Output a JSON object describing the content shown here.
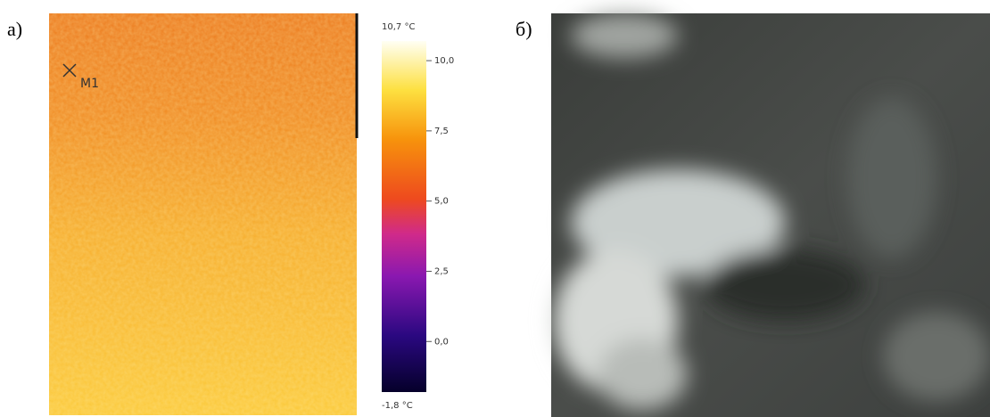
{
  "panel_a": {
    "label": "а)",
    "marker": "M1",
    "colorbar": {
      "max_label": "10,7 °C",
      "min_label": "-1,8 °C",
      "range": [
        -1.8,
        10.7
      ],
      "ticks": [
        {
          "value": 10,
          "label": "10,0"
        },
        {
          "value": 7.5,
          "label": "7,5"
        },
        {
          "value": 5,
          "label": "5,0"
        },
        {
          "value": 2.5,
          "label": "2,5"
        },
        {
          "value": 0,
          "label": "0,0"
        }
      ]
    }
  },
  "panel_b": {
    "label": "б)"
  }
}
